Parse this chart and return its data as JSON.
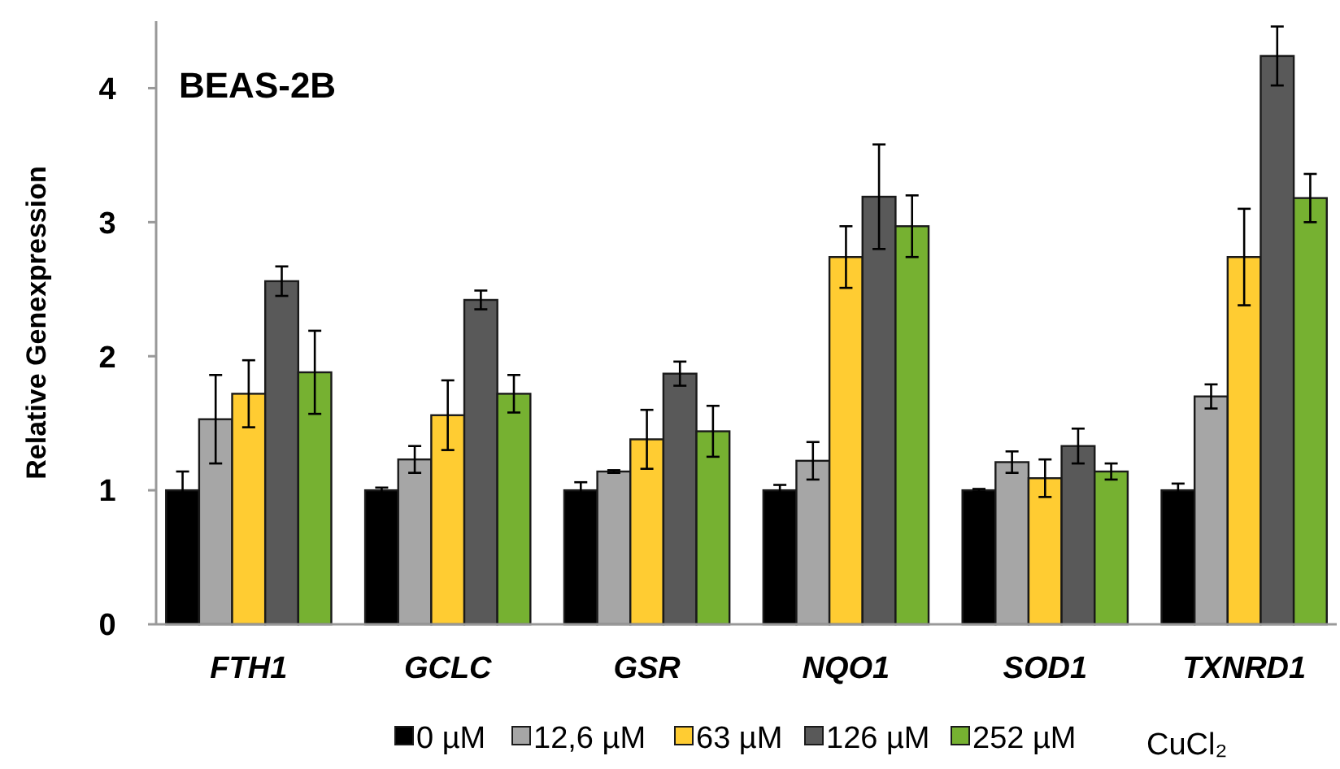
{
  "chart_data": {
    "type": "bar",
    "title": "BEAS-2B",
    "ylabel": "Relative Genexpression",
    "legend_title": "CuCl₂",
    "categories": [
      "FTH1",
      "GCLC",
      "GSR",
      "NQO1",
      "SOD1",
      "TXNRD1"
    ],
    "series": [
      {
        "name": "0 µM",
        "color": "#000000",
        "values": [
          1.0,
          1.0,
          1.0,
          1.0,
          1.0,
          1.0
        ],
        "errors": [
          0.14,
          0.02,
          0.06,
          0.04,
          0.01,
          0.05
        ]
      },
      {
        "name": "12,6 µM",
        "color": "#a6a6a6",
        "values": [
          1.53,
          1.23,
          1.14,
          1.22,
          1.21,
          1.7
        ],
        "errors": [
          0.33,
          0.1,
          0.01,
          0.14,
          0.08,
          0.09
        ]
      },
      {
        "name": "63 µM",
        "color": "#ffcc32",
        "values": [
          1.72,
          1.56,
          1.38,
          2.74,
          1.09,
          2.74
        ],
        "errors": [
          0.25,
          0.26,
          0.22,
          0.23,
          0.14,
          0.36
        ]
      },
      {
        "name": "126 µM",
        "color": "#595959",
        "values": [
          2.56,
          2.42,
          1.87,
          3.19,
          1.33,
          4.24
        ],
        "errors": [
          0.11,
          0.07,
          0.09,
          0.39,
          0.13,
          0.22
        ]
      },
      {
        "name": "252 µM",
        "color": "#76b131",
        "values": [
          1.88,
          1.72,
          1.44,
          2.97,
          1.14,
          3.18
        ],
        "errors": [
          0.31,
          0.14,
          0.19,
          0.23,
          0.06,
          0.18
        ]
      }
    ],
    "ylim": [
      0,
      4.5
    ],
    "yticks": [
      0,
      1,
      2,
      3,
      4
    ],
    "grid": false,
    "legend": "bottom"
  }
}
